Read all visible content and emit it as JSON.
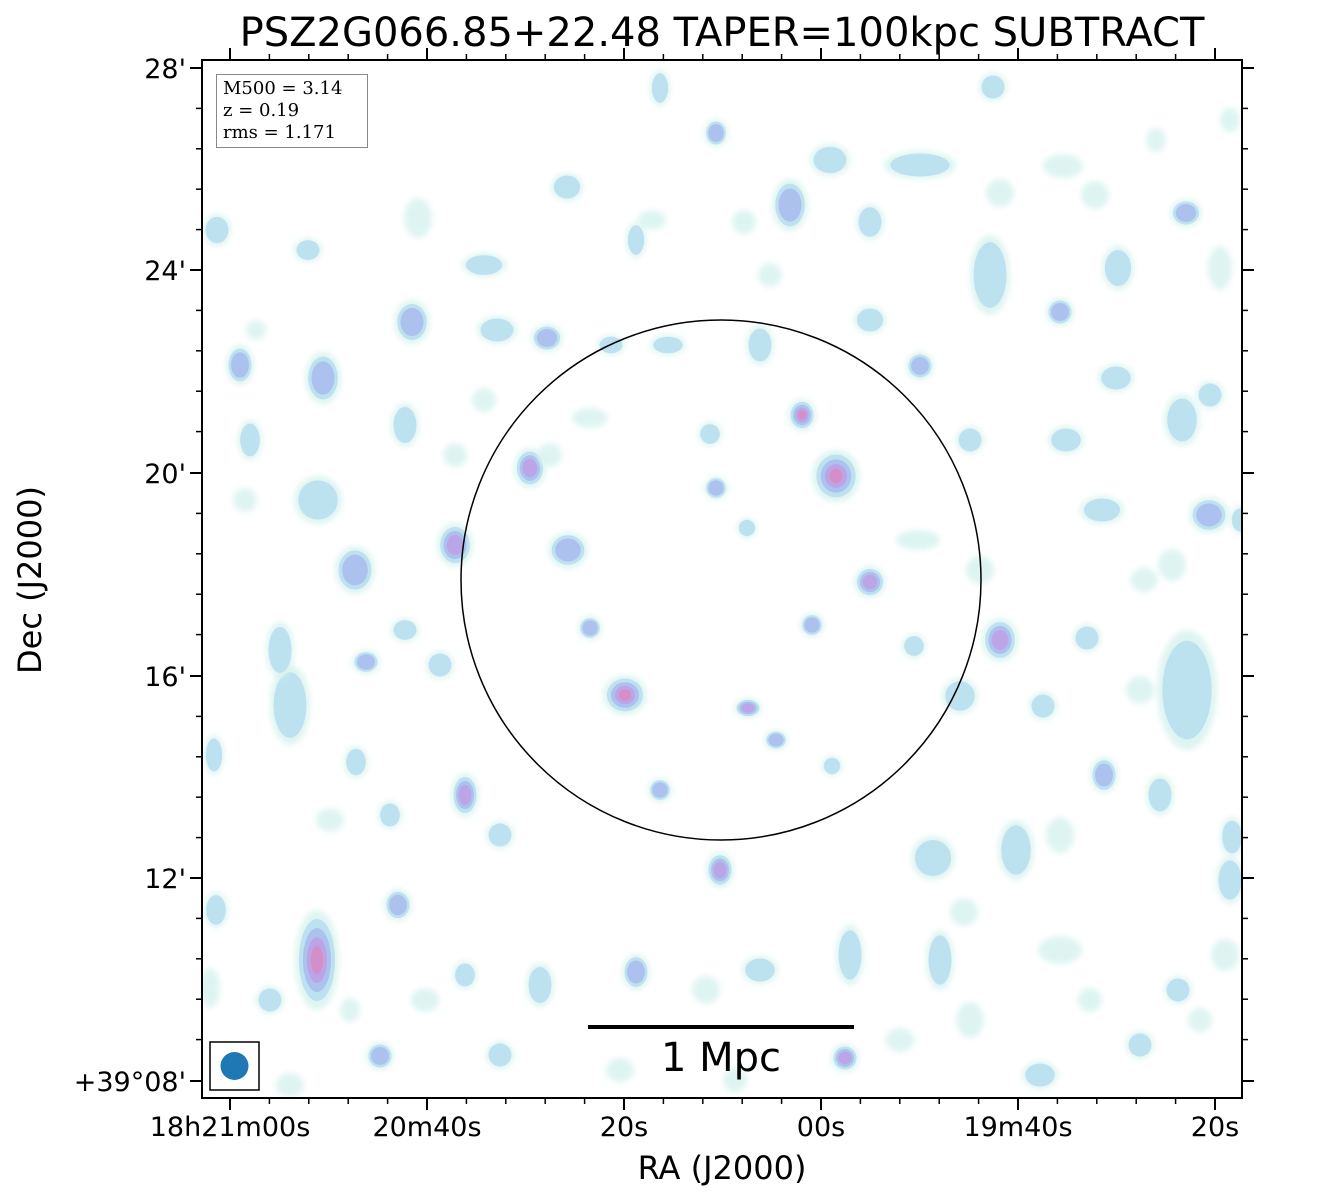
{
  "chart_data": {
    "type": "heatmap",
    "title": "PSZ2G066.85+22.48 TAPER=100kpc SUBTRACT",
    "xlabel": "RA (J2000)",
    "ylabel": "Dec (J2000)",
    "x_ticks": [
      "18h21m00s",
      "20m40s",
      "20s",
      "00s",
      "19m40s",
      "20s"
    ],
    "y_ticks": [
      "28'",
      "24'",
      "20'",
      "16'",
      "12'",
      "+39°08'"
    ],
    "annotations": {
      "m500": "M500 = 3.14",
      "z": "z = 0.19",
      "rms": "rms = 1.171"
    },
    "scale_bar_label": "1 Mpc",
    "colormap": [
      "#d8f3ef",
      "#b4dcef",
      "#a9b9ee",
      "#bf9ee3",
      "#d98ac0"
    ],
    "circle_color": "#000000",
    "beam_color": "#1f77b4",
    "grid": false
  }
}
